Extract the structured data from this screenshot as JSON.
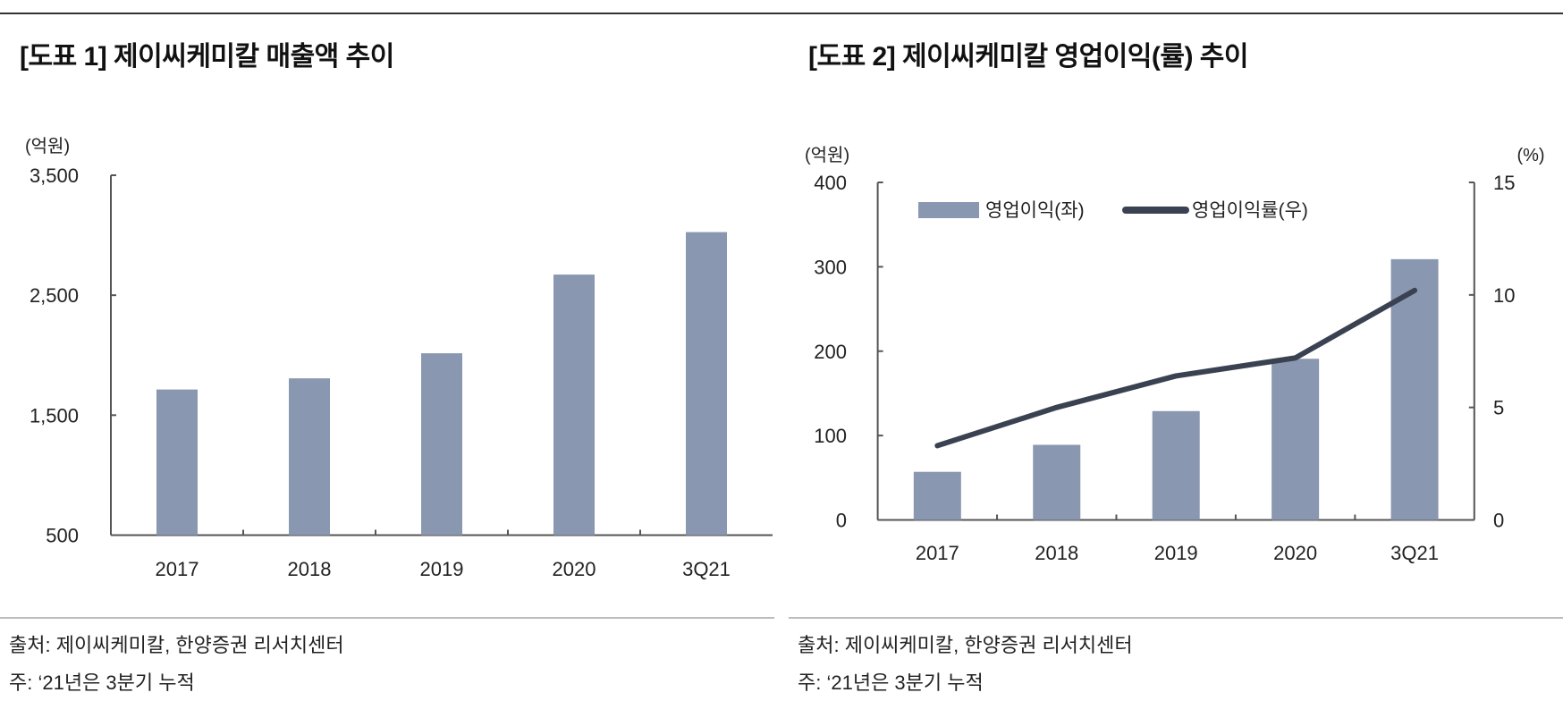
{
  "colors": {
    "bar": "#8a97b0",
    "line": "#3a4252",
    "axis": "#555555"
  },
  "chart_data": [
    {
      "type": "bar",
      "title": "[도표 1] 제이씨케미칼 매출액 추이",
      "ylabel": "(억원)",
      "categories": [
        "2017",
        "2018",
        "2019",
        "2020",
        "3Q21"
      ],
      "values": [
        1714,
        1807,
        2016,
        2672,
        3026
      ],
      "ylim": [
        500,
        3500
      ],
      "yticks": [
        "3,500",
        "2,500",
        "1,500",
        "500"
      ],
      "ytick_values": [
        3500,
        2500,
        1500,
        500
      ],
      "grid": false,
      "source": "출처: 제이씨케미칼, 한양증권 리서치센터",
      "note": "주: ‘21년은 3분기 누적"
    },
    {
      "type": "bar+line",
      "title": "[도표 2] 제이씨케미칼 영업이익(률) 추이",
      "ylabel_left": "(억원)",
      "ylabel_right": "(%)",
      "categories": [
        "2017",
        "2018",
        "2019",
        "2020",
        "3Q21"
      ],
      "series": [
        {
          "name": "영업이익(좌)",
          "type": "bar",
          "axis": "left",
          "values": [
            57,
            89,
            129,
            191,
            309
          ]
        },
        {
          "name": "영업이익률(우)",
          "type": "line",
          "axis": "right",
          "values": [
            3.3,
            5.0,
            6.4,
            7.2,
            10.2
          ]
        }
      ],
      "ylim_left": [
        0,
        400
      ],
      "yticks_left": [
        "400",
        "300",
        "200",
        "100",
        "0"
      ],
      "ytick_values_left": [
        400,
        300,
        200,
        100,
        0
      ],
      "ylim_right": [
        0,
        15
      ],
      "yticks_right": [
        "15",
        "10",
        "5",
        "0"
      ],
      "ytick_values_right": [
        15,
        10,
        5,
        0
      ],
      "legend": "top",
      "grid": false,
      "source": "출처: 제이씨케미칼, 한양증권 리서치센터",
      "note": "주: ‘21년은 3분기 누적"
    }
  ]
}
